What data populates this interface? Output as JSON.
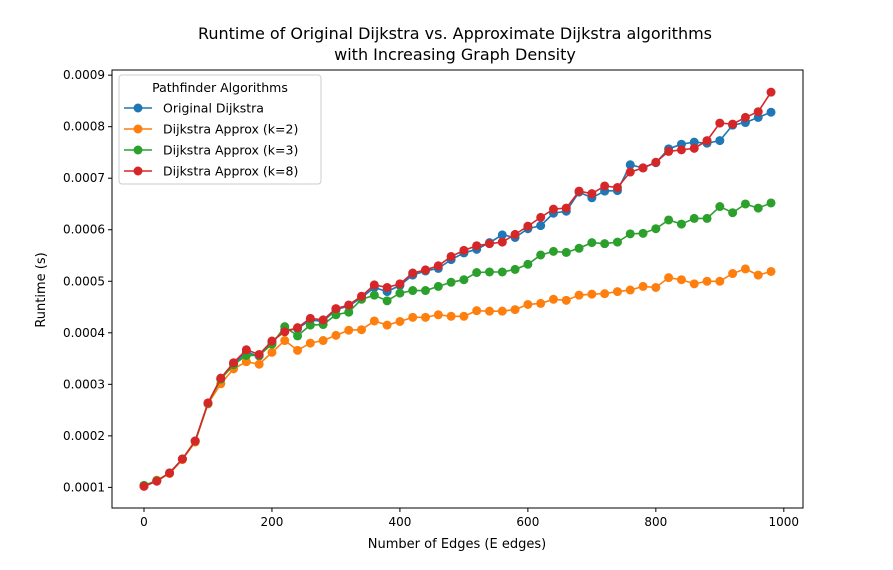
{
  "chart_data": {
    "type": "line",
    "title": "Runtime of Original Dijkstra vs. Approximate Dijkstra algorithms",
    "subtitle": "with Increasing Graph Density",
    "xlabel": "Number of Edges (E edges)",
    "ylabel": "Runtime (s)",
    "xlim": [
      -50,
      1030
    ],
    "ylim": [
      6e-05,
      0.00091
    ],
    "xticks": [
      0,
      200,
      400,
      600,
      800,
      1000
    ],
    "xtick_labels": [
      "0",
      "200",
      "400",
      "600",
      "800",
      "1000"
    ],
    "yticks": [
      0.0001,
      0.0002,
      0.0003,
      0.0004,
      0.0005,
      0.0006,
      0.0007,
      0.0008,
      0.0009
    ],
    "ytick_labels": [
      "0.0001",
      "0.0002",
      "0.0003",
      "0.0004",
      "0.0005",
      "0.0006",
      "0.0007",
      "0.0008",
      "0.0009"
    ],
    "grid": false,
    "legend": {
      "title": "Pathfinder Algorithms",
      "placement": "top-left"
    },
    "x": [
      0,
      20,
      40,
      60,
      80,
      100,
      120,
      140,
      160,
      180,
      200,
      220,
      240,
      260,
      280,
      300,
      320,
      340,
      360,
      380,
      400,
      420,
      440,
      460,
      480,
      500,
      520,
      540,
      560,
      580,
      600,
      620,
      640,
      660,
      680,
      700,
      720,
      740,
      760,
      780,
      800,
      820,
      840,
      860,
      880,
      900,
      920,
      940,
      960,
      980
    ],
    "series": [
      {
        "name": "Original Dijkstra",
        "color": "#1f77b4",
        "values": [
          0.000103,
          0.000113,
          0.000128,
          0.000155,
          0.00019,
          0.000263,
          0.00031,
          0.00034,
          0.000362,
          0.000355,
          0.000382,
          0.000405,
          0.000408,
          0.000425,
          0.000422,
          0.000445,
          0.000452,
          0.000468,
          0.000488,
          0.00048,
          0.000492,
          0.000512,
          0.00052,
          0.000525,
          0.000542,
          0.000555,
          0.000562,
          0.000575,
          0.00059,
          0.000585,
          0.000602,
          0.000608,
          0.000632,
          0.000636,
          0.000673,
          0.000662,
          0.000675,
          0.000676,
          0.000726,
          0.00072,
          0.00073,
          0.000757,
          0.000766,
          0.00077,
          0.000768,
          0.000773,
          0.000803,
          0.000808,
          0.000818,
          0.000828
        ]
      },
      {
        "name": "Dijkstra Approx (k=2)",
        "color": "#ff7f0e",
        "values": [
          0.000103,
          0.000114,
          0.000127,
          0.000154,
          0.000188,
          0.000262,
          0.000301,
          0.00033,
          0.000344,
          0.000339,
          0.000362,
          0.000385,
          0.000366,
          0.00038,
          0.000385,
          0.000395,
          0.000405,
          0.000406,
          0.000423,
          0.000415,
          0.000422,
          0.00043,
          0.00043,
          0.000435,
          0.000432,
          0.000432,
          0.000443,
          0.000442,
          0.000442,
          0.000445,
          0.000455,
          0.000457,
          0.000465,
          0.000463,
          0.000473,
          0.000475,
          0.000476,
          0.00048,
          0.000483,
          0.00049,
          0.000488,
          0.000507,
          0.000503,
          0.000495,
          0.0005,
          0.0005,
          0.000515,
          0.000524,
          0.000512,
          0.000519
        ]
      },
      {
        "name": "Dijkstra Approx (k=3)",
        "color": "#2ca02c",
        "values": [
          0.000104,
          0.000113,
          0.000128,
          0.000155,
          0.00019,
          0.000263,
          0.00031,
          0.000338,
          0.000356,
          0.000356,
          0.000378,
          0.000412,
          0.000394,
          0.000415,
          0.000416,
          0.000435,
          0.00044,
          0.000465,
          0.000473,
          0.000462,
          0.000477,
          0.000482,
          0.000482,
          0.00049,
          0.000498,
          0.000503,
          0.000517,
          0.000518,
          0.000518,
          0.000523,
          0.000533,
          0.000551,
          0.000558,
          0.000556,
          0.000564,
          0.000575,
          0.000573,
          0.000576,
          0.000592,
          0.000593,
          0.000602,
          0.000619,
          0.000611,
          0.000622,
          0.000622,
          0.000645,
          0.000633,
          0.00065,
          0.000642,
          0.000652
        ]
      },
      {
        "name": "Dijkstra Approx (k=8)",
        "color": "#d62728",
        "values": [
          0.000102,
          0.000112,
          0.000128,
          0.000155,
          0.00019,
          0.000264,
          0.000312,
          0.000342,
          0.000367,
          0.000358,
          0.000384,
          0.000402,
          0.00041,
          0.000428,
          0.000425,
          0.000447,
          0.000454,
          0.000471,
          0.000493,
          0.000488,
          0.000495,
          0.000516,
          0.000522,
          0.00053,
          0.000548,
          0.00056,
          0.000569,
          0.000573,
          0.000576,
          0.000591,
          0.000607,
          0.000624,
          0.00064,
          0.000642,
          0.000675,
          0.00067,
          0.000685,
          0.000682,
          0.000712,
          0.00072,
          0.000731,
          0.000752,
          0.000755,
          0.000758,
          0.000773,
          0.000807,
          0.000805,
          0.000818,
          0.000829,
          0.000867
        ]
      }
    ]
  }
}
